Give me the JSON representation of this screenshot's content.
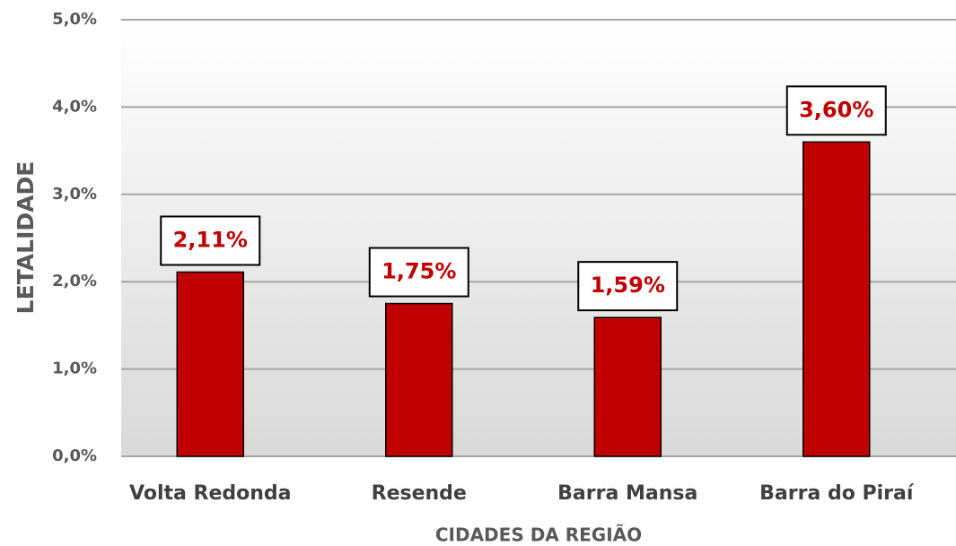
{
  "chart_data": {
    "type": "bar",
    "x_label": "CIDADES DA REGIÃO",
    "y_label": "LETALIDADE",
    "categories": [
      "Volta Redonda",
      "Resende",
      "Barra Mansa",
      "Barra do Piraí"
    ],
    "values": [
      2.11,
      1.75,
      1.59,
      3.6
    ],
    "value_labels": [
      "2,11%",
      "1,75%",
      "1,59%",
      "3,60%"
    ],
    "color": "#c00000",
    "ylim": [
      0,
      5
    ],
    "yticks": [
      {
        "value": 0,
        "label": "0,0%"
      },
      {
        "value": 1,
        "label": "1,0%"
      },
      {
        "value": 2,
        "label": "2,0%"
      },
      {
        "value": 3,
        "label": "3,0%"
      },
      {
        "value": 4,
        "label": "4,0%"
      },
      {
        "value": 5,
        "label": "5,0%"
      }
    ],
    "grid": true
  }
}
